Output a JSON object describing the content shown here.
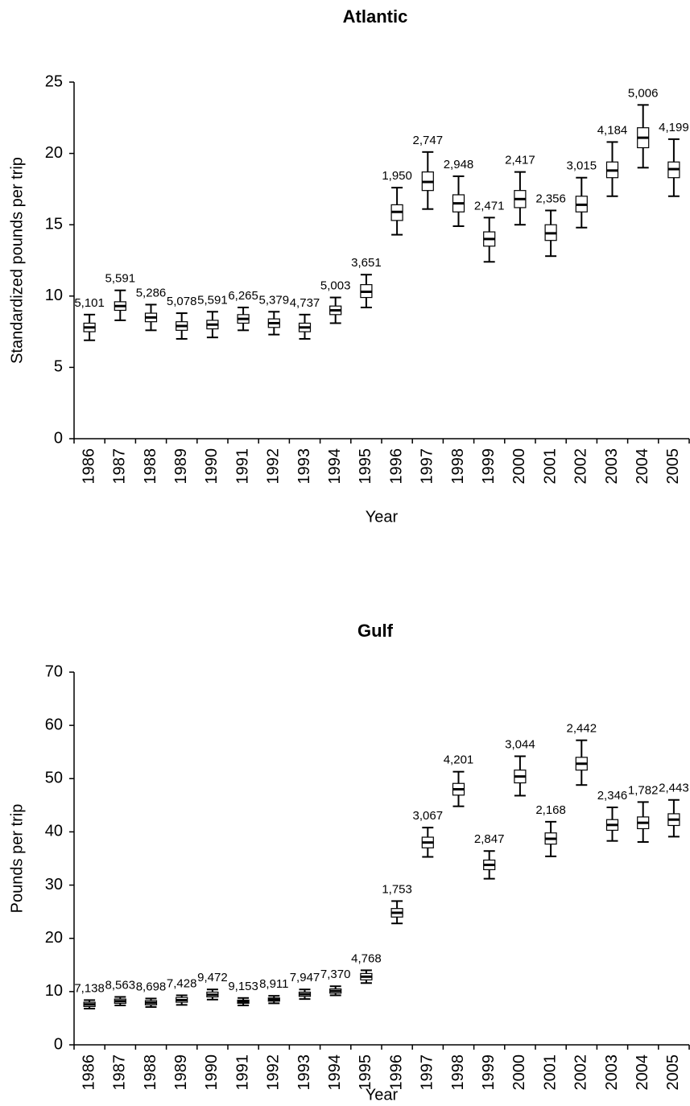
{
  "chart_data": [
    {
      "type": "box",
      "title": "Atlantic",
      "y_label": "Standardized pounds per trip",
      "x_label": "Year",
      "categories": [
        "1986",
        "1987",
        "1988",
        "1989",
        "1990",
        "1991",
        "1992",
        "1993",
        "1994",
        "1995",
        "1996",
        "1997",
        "1998",
        "1999",
        "2000",
        "2001",
        "2002",
        "2003",
        "2004",
        "2005"
      ],
      "whislo": [
        6.9,
        8.3,
        7.6,
        7.0,
        7.1,
        7.6,
        7.3,
        7.0,
        8.1,
        9.2,
        14.3,
        16.1,
        14.9,
        12.4,
        15.0,
        12.8,
        14.8,
        17.0,
        19.0,
        17.0
      ],
      "q1": [
        7.5,
        9.0,
        8.2,
        7.6,
        7.7,
        8.1,
        7.8,
        7.5,
        8.7,
        9.9,
        15.3,
        17.4,
        15.9,
        13.5,
        16.2,
        13.9,
        15.9,
        18.3,
        20.4,
        18.3
      ],
      "med": [
        7.8,
        9.3,
        8.5,
        7.9,
        8.0,
        8.4,
        8.1,
        7.8,
        9.0,
        10.3,
        15.9,
        18.0,
        16.5,
        14.0,
        16.8,
        14.4,
        16.4,
        18.8,
        21.1,
        18.9
      ],
      "q3": [
        8.1,
        9.6,
        8.8,
        8.2,
        8.3,
        8.7,
        8.4,
        8.1,
        9.3,
        10.8,
        16.4,
        18.7,
        17.1,
        14.5,
        17.4,
        15.0,
        17.0,
        19.4,
        21.8,
        19.4
      ],
      "whishi": [
        8.7,
        10.4,
        9.4,
        8.8,
        8.9,
        9.2,
        8.9,
        8.7,
        9.9,
        11.5,
        17.6,
        20.1,
        18.4,
        15.5,
        18.7,
        16.0,
        18.3,
        20.8,
        23.4,
        21.0
      ],
      "n_labels": [
        "5,101",
        "5,591",
        "5,286",
        "5,078",
        "5,591",
        "6,265",
        "5,379",
        "4,737",
        "5,003",
        "3,651",
        "1,950",
        "2,747",
        "2,948",
        "2,471",
        "2,417",
        "2,356",
        "3,015",
        "4,184",
        "5,006",
        "4,199"
      ],
      "ylim": [
        0,
        25
      ],
      "yticks": [
        0,
        5,
        10,
        15,
        20,
        25
      ],
      "color": "#000000"
    },
    {
      "type": "box",
      "title": "Gulf",
      "y_label": "Pounds per trip",
      "x_label": "Year",
      "categories": [
        "1986",
        "1987",
        "1988",
        "1989",
        "1990",
        "1991",
        "1992",
        "1993",
        "1994",
        "1995",
        "1996",
        "1997",
        "1998",
        "1999",
        "2000",
        "2001",
        "2002",
        "2003",
        "2004",
        "2005"
      ],
      "whislo": [
        6.8,
        7.4,
        7.1,
        7.5,
        8.5,
        7.4,
        7.8,
        8.6,
        9.3,
        11.6,
        22.8,
        35.3,
        44.8,
        31.2,
        46.8,
        35.4,
        48.8,
        38.3,
        38.1,
        39.1
      ],
      "q1": [
        7.2,
        7.8,
        7.5,
        8.0,
        9.0,
        7.8,
        8.2,
        9.1,
        9.7,
        12.2,
        24.0,
        37.0,
        46.9,
        32.9,
        49.2,
        37.7,
        51.6,
        40.3,
        40.6,
        41.2
      ],
      "med": [
        7.6,
        8.2,
        7.9,
        8.4,
        9.4,
        8.1,
        8.5,
        9.5,
        10.1,
        12.8,
        24.8,
        38.0,
        48.0,
        33.8,
        50.4,
        38.7,
        52.8,
        41.3,
        41.7,
        42.3
      ],
      "q3": [
        8.0,
        8.6,
        8.3,
        8.9,
        9.9,
        8.4,
        8.8,
        9.9,
        10.5,
        13.4,
        25.6,
        39.0,
        49.1,
        34.7,
        51.6,
        39.8,
        54.0,
        42.3,
        42.8,
        43.4
      ],
      "whishi": [
        8.4,
        9.0,
        8.7,
        9.3,
        10.4,
        8.8,
        9.2,
        10.4,
        11.0,
        14.0,
        27.0,
        40.8,
        51.3,
        36.4,
        54.2,
        41.9,
        57.2,
        44.6,
        45.6,
        46.0
      ],
      "n_labels": [
        "7,138",
        "8,563",
        "8,698",
        "7,428",
        "9,472",
        "9,153",
        "8,911",
        "7,947",
        "7,370",
        "4,768",
        "1,753",
        "3,067",
        "4,201",
        "2,847",
        "3,044",
        "2,168",
        "2,442",
        "2,346",
        "1,782",
        "2,443"
      ],
      "ylim": [
        0,
        70
      ],
      "yticks": [
        0,
        10,
        20,
        30,
        40,
        50,
        60,
        70
      ],
      "color": "#000000"
    }
  ]
}
